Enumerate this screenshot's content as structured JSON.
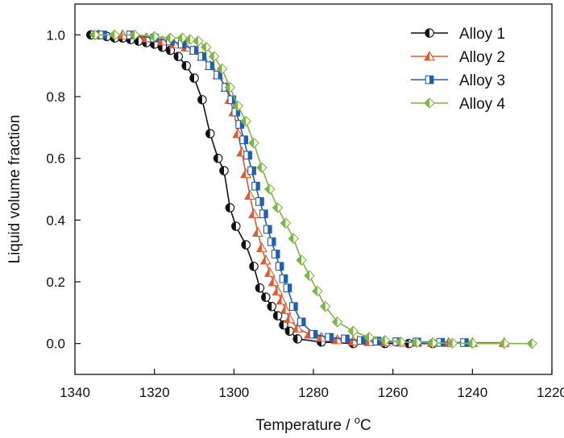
{
  "chart_data": {
    "type": "line",
    "xlabel": "Temperature / °C",
    "xlabel_parts": {
      "pre": "Temperature / ",
      "sup": "o",
      "post": "C"
    },
    "ylabel": "Liquid volume fraction",
    "xlim": [
      1340,
      1220
    ],
    "ylim": [
      -0.1,
      1.1
    ],
    "x_reversed": true,
    "xticks": [
      1340,
      1320,
      1300,
      1280,
      1260,
      1240,
      1220
    ],
    "yticks": [
      0.0,
      0.2,
      0.4,
      0.6,
      0.8,
      1.0
    ],
    "ytick_labels": [
      "0.0",
      "0.2",
      "0.4",
      "0.6",
      "0.8",
      "1.0"
    ],
    "grid": false,
    "legend_position": "top-right",
    "series": [
      {
        "name": "Alloy 1",
        "color": "#111111",
        "marker": "half-filled-circle",
        "x": [
          1336,
          1334,
          1332,
          1330,
          1328,
          1326,
          1324,
          1322,
          1320,
          1318,
          1316,
          1314,
          1312,
          1310,
          1308,
          1306,
          1304,
          1302.5,
          1301,
          1299.5,
          1297,
          1295,
          1293.5,
          1292,
          1290.5,
          1289,
          1287.5,
          1286,
          1284,
          1278,
          1270,
          1262,
          1256,
          1250
        ],
        "y": [
          1.0,
          1.0,
          0.995,
          0.99,
          0.99,
          0.985,
          0.98,
          0.975,
          0.97,
          0.96,
          0.95,
          0.93,
          0.9,
          0.86,
          0.79,
          0.68,
          0.6,
          0.56,
          0.44,
          0.38,
          0.32,
          0.25,
          0.18,
          0.15,
          0.12,
          0.09,
          0.06,
          0.04,
          0.015,
          0.005,
          0.0,
          0.0,
          0.0,
          0.0
        ]
      },
      {
        "name": "Alloy 2",
        "color": "#e8562c",
        "marker": "half-filled-triangle",
        "x": [
          1334,
          1328,
          1322,
          1318,
          1315,
          1312,
          1310,
          1308,
          1306,
          1304,
          1302,
          1301,
          1300,
          1299,
          1298,
          1297,
          1296,
          1295,
          1294,
          1293,
          1292,
          1291,
          1290,
          1289,
          1288,
          1287,
          1286,
          1284,
          1281,
          1278,
          1274,
          1270,
          1266,
          1262,
          1258,
          1254,
          1250,
          1246,
          1240,
          1232
        ],
        "y": [
          1.0,
          1.0,
          0.99,
          0.98,
          0.97,
          0.96,
          0.95,
          0.93,
          0.9,
          0.87,
          0.83,
          0.79,
          0.75,
          0.68,
          0.62,
          0.55,
          0.48,
          0.42,
          0.36,
          0.31,
          0.27,
          0.23,
          0.2,
          0.17,
          0.14,
          0.11,
          0.08,
          0.05,
          0.03,
          0.02,
          0.012,
          0.008,
          0.006,
          0.005,
          0.004,
          0.004,
          0.003,
          0.003,
          0.003,
          0.003
        ]
      },
      {
        "name": "Alloy 3",
        "color": "#1f5fb4",
        "marker": "half-filled-square",
        "x": [
          1333,
          1326,
          1320,
          1316,
          1313,
          1310,
          1308,
          1306,
          1304,
          1302,
          1300.5,
          1299.5,
          1298.5,
          1297.5,
          1296.5,
          1295.5,
          1294.5,
          1293.5,
          1292.5,
          1291.5,
          1290.5,
          1289.5,
          1288.5,
          1287.5,
          1286.5,
          1285,
          1283,
          1280,
          1276,
          1272,
          1268,
          1264,
          1259,
          1254,
          1248,
          1242
        ],
        "y": [
          1.0,
          1.0,
          0.99,
          0.98,
          0.97,
          0.95,
          0.93,
          0.9,
          0.87,
          0.83,
          0.79,
          0.75,
          0.71,
          0.66,
          0.61,
          0.56,
          0.51,
          0.46,
          0.42,
          0.37,
          0.33,
          0.29,
          0.25,
          0.21,
          0.18,
          0.12,
          0.07,
          0.03,
          0.02,
          0.015,
          0.01,
          0.008,
          0.006,
          0.005,
          0.004,
          0.003
        ]
      },
      {
        "name": "Alloy 4",
        "color": "#7fb642",
        "marker": "half-filled-diamond",
        "x": [
          1335,
          1330,
          1325,
          1320,
          1316,
          1313,
          1311,
          1309,
          1307,
          1305,
          1303,
          1301,
          1299,
          1297,
          1295,
          1293,
          1291,
          1289,
          1287,
          1285,
          1283,
          1281,
          1279,
          1277,
          1274,
          1270,
          1266,
          1262,
          1258,
          1254,
          1250,
          1245,
          1240,
          1232,
          1225
        ],
        "y": [
          1.0,
          1.0,
          1.0,
          0.995,
          0.99,
          0.99,
          0.985,
          0.98,
          0.96,
          0.93,
          0.89,
          0.83,
          0.77,
          0.72,
          0.65,
          0.57,
          0.5,
          0.44,
          0.39,
          0.34,
          0.27,
          0.22,
          0.17,
          0.12,
          0.07,
          0.04,
          0.02,
          0.01,
          0.005,
          0.003,
          0.002,
          0.001,
          0.0,
          0.0,
          0.0
        ]
      }
    ]
  }
}
